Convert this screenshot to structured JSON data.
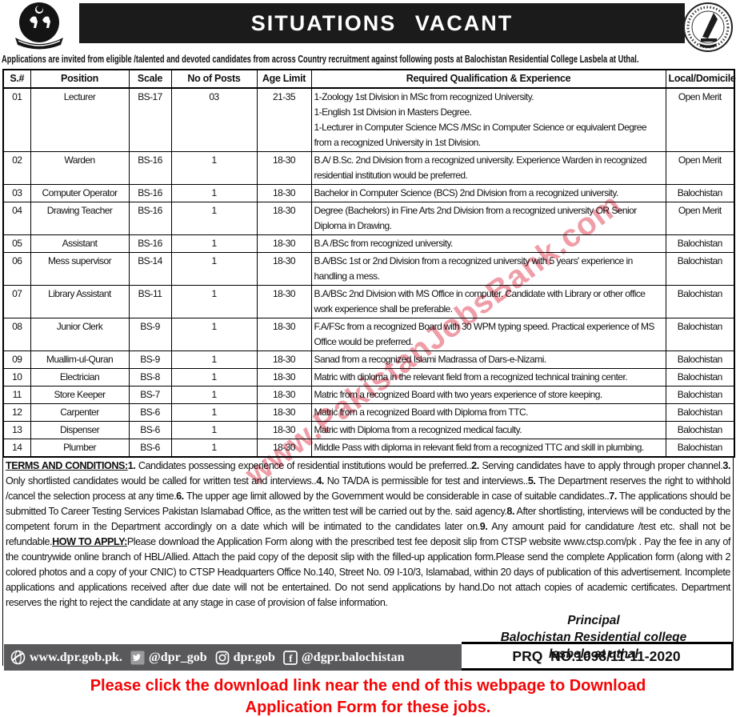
{
  "header": {
    "title": "SITUATIONS  VACANT",
    "left_logo": "balochistan-government-emblem",
    "right_logo": "directorate-general-public-relations-seal"
  },
  "intro": "Applications are invited from eligible /talented and devoted candidates from across Country recruitment against following posts at Balochistan Residential College Lasbela at Uthal.",
  "table": {
    "columns": [
      "S.#",
      "Position",
      "Scale",
      "No of Posts",
      "Age Limit",
      "Required Qualification & Experience",
      "Local/Domicile"
    ],
    "rows": [
      {
        "sn": "01",
        "position": "Lecturer",
        "scale": "BS-17",
        "posts": "03",
        "age": "21-35",
        "qualification": [
          "1-Zoology 1st Division in MSc from recognized University.",
          "1-English 1st Division in Masters Degree.",
          "1-Lecturer in Computer Science MCS /MSc in Computer Science or equivalent Degree from a recognized University in 1st Division."
        ],
        "domicile": "Open Merit"
      },
      {
        "sn": "02",
        "position": "Warden",
        "scale": "BS-16",
        "posts": "1",
        "age": "18-30",
        "qualification": [
          "B.A/ B.Sc. 2nd Division from a recognized university. Experience Warden in recognized residential institution would be preferred."
        ],
        "domicile": "Open Merit"
      },
      {
        "sn": "03",
        "position": "Computer Operator",
        "scale": "BS-16",
        "posts": "1",
        "age": "18-30",
        "qualification": [
          "Bachelor in Computer Science (BCS) 2nd Division from a recognized university."
        ],
        "domicile": "Balochistan"
      },
      {
        "sn": "04",
        "position": "Drawing Teacher",
        "scale": "BS-16",
        "posts": "1",
        "age": "18-30",
        "qualification": [
          "Degree (Bachelors) in Fine Arts 2nd Division from a recognized university OR Senior Diploma in Drawing."
        ],
        "domicile": "Open Merit"
      },
      {
        "sn": "05",
        "position": "Assistant",
        "scale": "BS-16",
        "posts": "1",
        "age": "18-30",
        "qualification": [
          "B.A /BSc from recognized university."
        ],
        "domicile": "Balochistan"
      },
      {
        "sn": "06",
        "position": "Mess supervisor",
        "scale": "BS-14",
        "posts": "1",
        "age": "18-30",
        "qualification": [
          "B.A/BSc 1st or 2nd Division from a recognized university with 5 years' experience in handling a mess."
        ],
        "domicile": "Balochistan"
      },
      {
        "sn": "07",
        "position": "Library Assistant",
        "scale": "BS-11",
        "posts": "1",
        "age": "18-30",
        "qualification": [
          "B.A/BSc 2nd Division with MS Office in computer. Candidate with Library or other office work experience shall be preferable."
        ],
        "domicile": "Balochistan"
      },
      {
        "sn": "08",
        "position": "Junior Clerk",
        "scale": "BS-9",
        "posts": "1",
        "age": "18-30",
        "qualification": [
          "F.A/FSc from a recognized Board with 30 WPM typing speed. Practical experience of MS Office would be preferred."
        ],
        "domicile": "Balochistan"
      },
      {
        "sn": "09",
        "position": "Muallim-ul-Quran",
        "scale": "BS-9",
        "posts": "1",
        "age": "18-30",
        "qualification": [
          "Sanad from a recognized Islami Madrassa of Dars-e-Nizami."
        ],
        "domicile": "Balochistan"
      },
      {
        "sn": "10",
        "position": "Electrician",
        "scale": "BS-8",
        "posts": "1",
        "age": "18-30",
        "qualification": [
          "Matric with diploma in the relevant field from a recognized technical training center."
        ],
        "domicile": "Balochistan"
      },
      {
        "sn": "11",
        "position": "Store Keeper",
        "scale": "BS-7",
        "posts": "1",
        "age": "18-30",
        "qualification": [
          "Matric from a recognized Board with two years experience of store keeping."
        ],
        "domicile": "Balochistan"
      },
      {
        "sn": "12",
        "position": "Carpenter",
        "scale": "BS-6",
        "posts": "1",
        "age": "18-30",
        "qualification": [
          "Matric from a recognized Board with Diploma from TTC."
        ],
        "domicile": "Balochistan"
      },
      {
        "sn": "13",
        "position": "Dispenser",
        "scale": "BS-6",
        "posts": "1",
        "age": "18-30",
        "qualification": [
          "Matric with Diploma from a recognized medical faculty."
        ],
        "domicile": "Balochistan"
      },
      {
        "sn": "14",
        "position": "Plumber",
        "scale": "BS-6",
        "posts": "1",
        "age": "18-30",
        "qualification": [
          "Middle Pass with diploma in relevant field from a recognized TTC and skill in plumbing."
        ],
        "domicile": "Balochistan"
      }
    ]
  },
  "terms_segments": [
    {
      "text": "TERMS AND CONDITIONS:",
      "bold": true,
      "underline": true
    },
    {
      "text": "1.",
      "bold": true
    },
    {
      "text": "  Candidates possessing experience of residential institutions would be preferred..",
      "bold": false
    },
    {
      "text": "2.",
      "bold": true
    },
    {
      "text": "  Serving candidates have to apply through proper channel.",
      "bold": false
    },
    {
      "text": "3.",
      "bold": true
    },
    {
      "text": "  Only shortlisted candidates would be called for written test and interviews..",
      "bold": false
    },
    {
      "text": "4.",
      "bold": true
    },
    {
      "text": "  No TA/DA is permissible for test and interviews..",
      "bold": false
    },
    {
      "text": "5.",
      "bold": true
    },
    {
      "text": "  The Department reserves the right to withhold /cancel the selection process at any time.",
      "bold": false
    },
    {
      "text": "6.",
      "bold": true
    },
    {
      "text": "  The upper age limit allowed by the Government would be considerable in case of suitable candidates..",
      "bold": false
    },
    {
      "text": "7.",
      "bold": true
    },
    {
      "text": "  The applications should be submitted To Career Testing Services Pakistan Islamabad Office, as the written test will be carried out by the.  said  agency.",
      "bold": false
    },
    {
      "text": "8.",
      "bold": true
    },
    {
      "text": "  After shortlisting, interviews will be conducted by the competent forum in the Department accordingly on a date which will be intimated to  the candidates later on.",
      "bold": false
    },
    {
      "text": "9.",
      "bold": true
    },
    {
      "text": "  Any amount paid for candidature /test etc. shall not be refundable.",
      "bold": false
    },
    {
      "text": "HOW TO APPLY:",
      "bold": true,
      "underline": true
    },
    {
      "text": "Please download the Application Form along with the prescribed test fee deposit slip from CTSP website www.ctsp.com/pk . Pay the fee  in any of the countrywide online branch of HBL/Allied. Attach the paid copy of the deposit slip with the filled-up application form.Please send the complete Application form (along with 2 colored photos and a copy of your CNIC) to CTSP Headquarters Office No.140, Street No. 09 I-10/3, Islamabad, within 20 days of publication of this advertisement. Incomplete applications and applications received after due date will not be entertained. Do not send applications by hand.Do not attach copies of academic certificates. Department reserves the right to reject the candidate at any stage in case of provision of false information.",
      "bold": false
    }
  ],
  "signature": {
    "line1": "Principal",
    "line2": "Balochistan Residential college",
    "line3": "lasbela at uthal"
  },
  "footer": {
    "website": "www.dpr.gob.pk.",
    "twitter": "@dpr_gob",
    "instagram": "dpr.gob",
    "facebook": "@dgpr.balochistan",
    "prq": "PRQ  NO.1098/11-11-2020"
  },
  "watermark": "www.PakistanJobsBank.com",
  "notice": "Please click the download link near the end of this webpage to Download\nApplication Form for these jobs.",
  "colors": {
    "title_bg": "#1b1b1b",
    "footer_gray": "#59595b",
    "notice_red": "#f40505",
    "watermark_pink": "rgba(226,78,96,0.55)"
  }
}
